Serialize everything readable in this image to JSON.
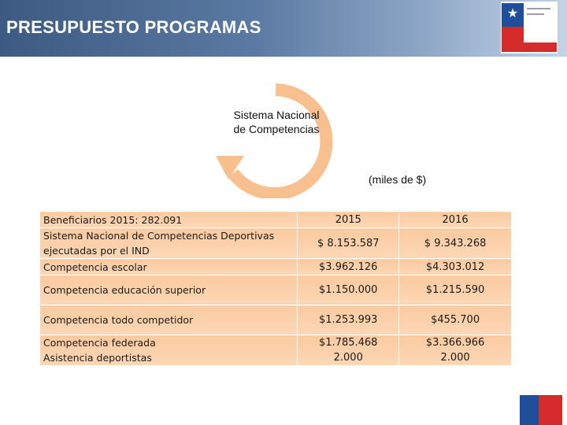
{
  "header": {
    "title": "PRESUPUESTO PROGRAMAS"
  },
  "diagram": {
    "center_label": "Sistema Nacional de Competencias",
    "arrow_color": "#f9c08f"
  },
  "units_note": "(miles de $)",
  "table": {
    "year_headers": [
      "2015",
      "2016"
    ],
    "label_lines": {
      "beneficiarios": "Beneficiarios 2015: 282.091",
      "sistema": "Sistema Nacional de Competencias Deportivas ejecutadas por el IND",
      "escolar": "Competencia escolar"
    },
    "totals": [
      "$ 8.153.587",
      "$ 9.343.268"
    ],
    "escolar_values": [
      "$3.962.126",
      "$4.303.012"
    ],
    "rows": [
      {
        "label": "Competencia educación superior",
        "v2015": "$1.150.000",
        "v2016": "$1.215.590"
      },
      {
        "label": "Competencia todo competidor",
        "v2015": "$1.253.993",
        "v2016": "$455.700"
      }
    ],
    "federada": {
      "label1": "Competencia federada",
      "label2": "Asistencia deportistas",
      "v2015a": "$1.785.468",
      "v2015b": "2.000",
      "v2016a": "$3.366.966",
      "v2016b": "2.000"
    },
    "cell_color": "#fbcaa0"
  },
  "colors": {
    "header_start": "#3c5a82",
    "header_end": "#c5d4e6",
    "flag_blue": "#1f4f9a",
    "flag_red": "#d52b2b"
  },
  "icons": [
    "government-logo-icon",
    "cycle-arrow-icon",
    "flag-corner-icon"
  ]
}
